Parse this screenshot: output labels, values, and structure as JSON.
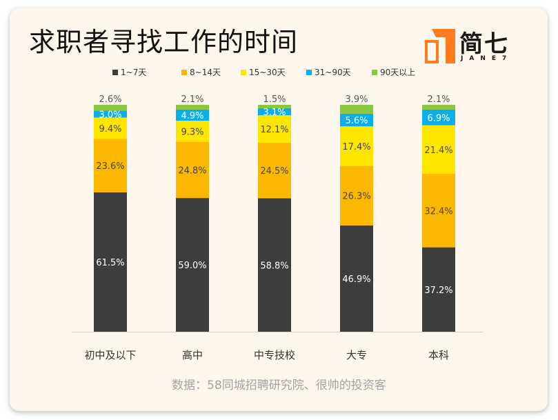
{
  "header": {
    "title": "求职者寻找工作的时间"
  },
  "logo": {
    "text": "简七",
    "subtext": "JANE7"
  },
  "source": {
    "text": "数据：58同城招聘研究院、很帅的投资客"
  },
  "chart_data": {
    "type": "bar",
    "stacked": true,
    "orientation": "vertical",
    "title": "求职者寻找工作的时间",
    "categories": [
      "初中及以下",
      "高中",
      "中专技校",
      "大专",
      "本科"
    ],
    "series": [
      {
        "name": "1~7天",
        "color": "#3d3d3d",
        "label_color": "#ffffff",
        "values": [
          61.5,
          59.0,
          58.8,
          46.9,
          37.2
        ],
        "labels": [
          "61.5%",
          "59.0%",
          "58.8%",
          "46.9%",
          "37.2%"
        ]
      },
      {
        "name": "8~14天",
        "color": "#fbb800",
        "label_color": "#444444",
        "values": [
          23.6,
          24.8,
          24.5,
          26.3,
          32.4
        ],
        "labels": [
          "23.6%",
          "24.8%",
          "24.5%",
          "26.3%",
          "32.4%"
        ]
      },
      {
        "name": "15~30天",
        "color": "#ffe600",
        "label_color": "#444444",
        "values": [
          9.4,
          9.3,
          12.1,
          17.4,
          21.4
        ],
        "labels": [
          "9.4%",
          "9.3%",
          "12.1%",
          "17.4%",
          "21.4%"
        ]
      },
      {
        "name": "31~90天",
        "color": "#0aaeea",
        "label_color": "#ffffff",
        "values": [
          3.0,
          4.9,
          3.1,
          5.6,
          6.9
        ],
        "labels": [
          "3.0%",
          "4.9%",
          "3.1%",
          "5.6%",
          "6.9%"
        ]
      },
      {
        "name": "90天以上",
        "color": "#8cc63f",
        "label_color": "#555555",
        "values": [
          2.6,
          2.1,
          1.5,
          3.9,
          2.1
        ],
        "labels": [
          "2.6%",
          "2.1%",
          "1.5%",
          "3.9%",
          "2.1%"
        ]
      }
    ],
    "ylim": [
      0,
      100
    ],
    "grid": false,
    "legend": "top-center",
    "xlabel": "",
    "ylabel": ""
  },
  "colors": {
    "background": "#fcf6ec",
    "logo_accent": "#ff7c1e"
  }
}
